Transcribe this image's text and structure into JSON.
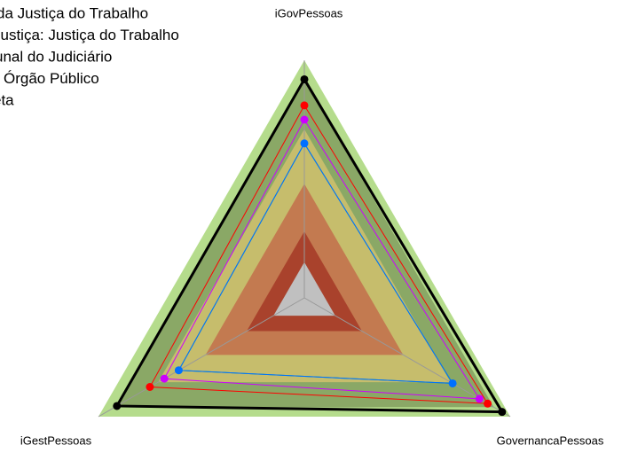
{
  "chart_data": {
    "type": "radar",
    "axes": [
      "iGovPessoas",
      "GovernancaPessoas",
      "iGestPessoas"
    ],
    "rlim": [
      0,
      100
    ],
    "bands": [
      {
        "to": 100,
        "color": "#b5dc8c"
      },
      {
        "to": 92,
        "color": "#8aa866"
      },
      {
        "to": 71,
        "color": "#c6bd6c"
      },
      {
        "to": 48,
        "color": "#c37a50"
      },
      {
        "to": 28,
        "color": "#a9422c"
      },
      {
        "to": 15,
        "color": "#c0c0c0"
      }
    ],
    "series": [
      {
        "name": "da Justiça do Trabalho",
        "color": "#ff0000",
        "values": [
          81,
          89,
          75
        ]
      },
      {
        "name": "Justiça: Justiça do Trabalho",
        "color": "#cc00ff",
        "values": [
          75,
          85,
          68
        ]
      },
      {
        "name": "unal do Judiciário",
        "color": "#00a0a0",
        "values": [
          65,
          72,
          61
        ],
        "markers": false
      },
      {
        "name": "Órgão Público",
        "color": "#0070ff",
        "values": [
          65,
          72,
          61
        ]
      },
      {
        "name": "eta",
        "color": "#000000",
        "values": [
          92,
          96,
          91
        ]
      }
    ]
  }
}
